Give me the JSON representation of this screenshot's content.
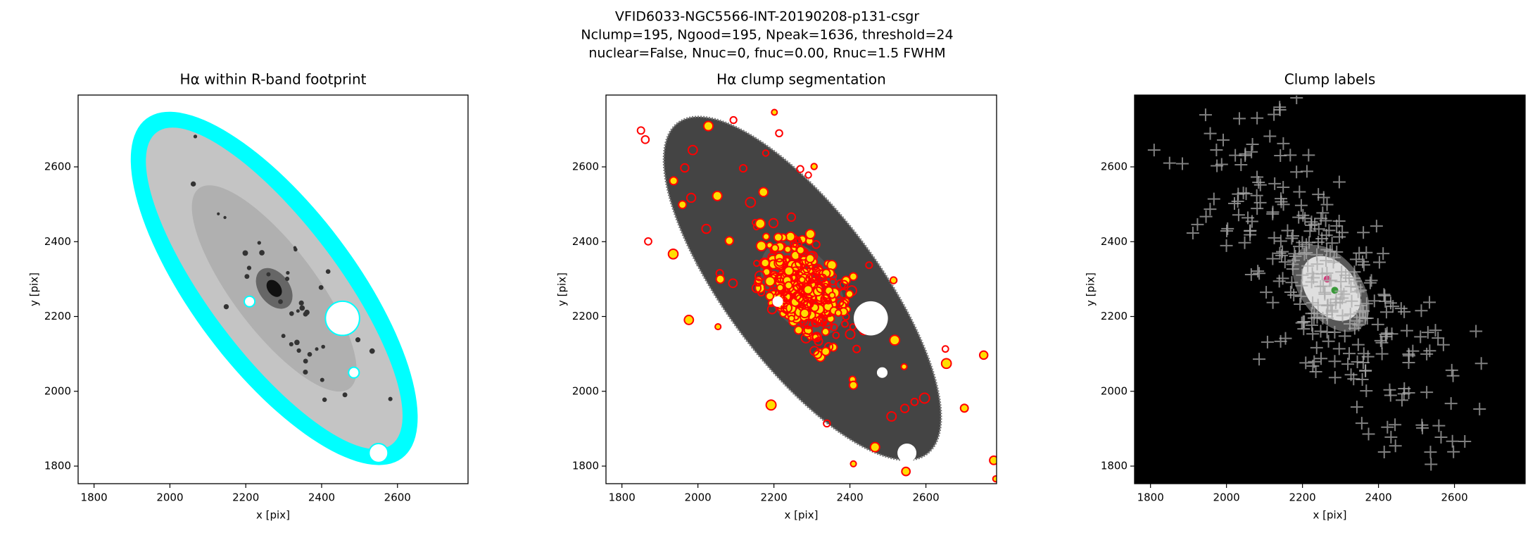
{
  "title": [
    "VFID6033-NGC5566-INT-20190208-p131-csgr",
    "Nclump=195, Ngood=195, Npeak=1636, threshold=24",
    "nuclear=False, Nnuc=0, fnuc=0.00, Rnuc=1.5 FWHM"
  ],
  "chart_data": [
    {
      "type": "image",
      "title": "Hα within R-band footprint",
      "xlabel": "x [pix]",
      "ylabel": "y [pix]",
      "xlim": [
        1758,
        2786
      ],
      "ylim": [
        1753,
        2792
      ],
      "xticks": [
        1800,
        2000,
        2200,
        2400,
        2600
      ],
      "yticks": [
        1800,
        2000,
        2200,
        2400,
        2600
      ]
    },
    {
      "type": "image",
      "title": "Hα clump segmentation",
      "xlabel": "x [pix]",
      "ylabel": "y [pix]",
      "xlim": [
        1758,
        2786
      ],
      "ylim": [
        1753,
        2792
      ],
      "xticks": [
        1800,
        2000,
        2200,
        2400,
        2600
      ],
      "yticks": [
        1800,
        2000,
        2200,
        2400,
        2600
      ]
    },
    {
      "type": "image",
      "title": "Clump labels",
      "xlabel": "x [pix]",
      "ylabel": "y [pix]",
      "xlim": [
        1758,
        2786
      ],
      "ylim": [
        1753,
        2792
      ],
      "xticks": [
        1800,
        2000,
        2200,
        2400,
        2600
      ],
      "yticks": [
        1800,
        2000,
        2200,
        2400,
        2600
      ]
    }
  ]
}
